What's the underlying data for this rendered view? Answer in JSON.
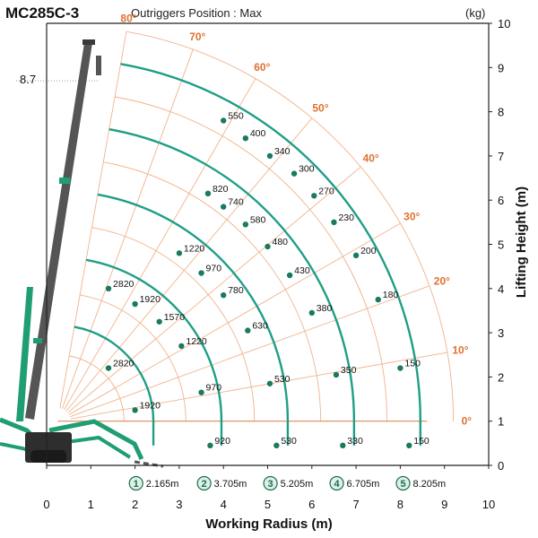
{
  "header": {
    "model": "MC285C-3",
    "subtitle": "Outriggers Position : Max",
    "unit": "(kg)"
  },
  "chart_data": {
    "type": "load-chart",
    "xlabel": "Working Radius (m)",
    "ylabel": "Lifting Height (m)",
    "xlim": [
      0,
      10
    ],
    "ylim": [
      0,
      10
    ],
    "x_ticks": [
      "0",
      "1",
      "2",
      "3",
      "4",
      "5",
      "6",
      "7",
      "8",
      "9",
      "10"
    ],
    "y_ticks": [
      "0",
      "1",
      "2",
      "3",
      "4",
      "5",
      "6",
      "7",
      "8",
      "9",
      "10"
    ],
    "max_height_label": "8.7",
    "max_height_value": 8.7,
    "boom_pivot": [
      0.25,
      1.0
    ],
    "angle_lines": [
      {
        "label": "80°",
        "deg": 80
      },
      {
        "label": "70°",
        "deg": 70
      },
      {
        "label": "60°",
        "deg": 60
      },
      {
        "label": "50°",
        "deg": 50
      },
      {
        "label": "40°",
        "deg": 40
      },
      {
        "label": "30°",
        "deg": 30
      },
      {
        "label": "20°",
        "deg": 20
      },
      {
        "label": "10°",
        "deg": 10
      },
      {
        "label": "0°",
        "deg": 0
      }
    ],
    "boom_sections": [
      {
        "index": "1",
        "length_label": "2.165m",
        "radius": 2.165
      },
      {
        "index": "2",
        "length_label": "3.705m",
        "radius": 3.705
      },
      {
        "index": "3",
        "length_label": "5.205m",
        "radius": 5.205
      },
      {
        "index": "4",
        "length_label": "6.705m",
        "radius": 6.705
      },
      {
        "index": "5",
        "length_label": "8.205m",
        "radius": 8.205
      }
    ],
    "loads": [
      {
        "value": "550",
        "x": 4.0,
        "y": 7.8
      },
      {
        "value": "400",
        "x": 4.5,
        "y": 7.4
      },
      {
        "value": "340",
        "x": 5.05,
        "y": 7.0
      },
      {
        "value": "300",
        "x": 5.6,
        "y": 6.6
      },
      {
        "value": "270",
        "x": 6.05,
        "y": 6.1
      },
      {
        "value": "230",
        "x": 6.5,
        "y": 5.5
      },
      {
        "value": "200",
        "x": 7.0,
        "y": 4.75
      },
      {
        "value": "180",
        "x": 7.5,
        "y": 3.75
      },
      {
        "value": "150",
        "x": 8.0,
        "y": 2.2
      },
      {
        "value": "150",
        "x": 8.2,
        "y": 0.45
      },
      {
        "value": "820",
        "x": 3.65,
        "y": 6.15
      },
      {
        "value": "740",
        "x": 4.0,
        "y": 5.85
      },
      {
        "value": "580",
        "x": 4.5,
        "y": 5.45
      },
      {
        "value": "480",
        "x": 5.0,
        "y": 4.95
      },
      {
        "value": "430",
        "x": 5.5,
        "y": 4.3
      },
      {
        "value": "380",
        "x": 6.0,
        "y": 3.45
      },
      {
        "value": "350",
        "x": 6.55,
        "y": 2.05
      },
      {
        "value": "330",
        "x": 6.7,
        "y": 0.45
      },
      {
        "value": "1220",
        "x": 3.0,
        "y": 4.8
      },
      {
        "value": "970",
        "x": 3.5,
        "y": 4.35
      },
      {
        "value": "780",
        "x": 4.0,
        "y": 3.85
      },
      {
        "value": "630",
        "x": 4.55,
        "y": 3.05
      },
      {
        "value": "530",
        "x": 5.05,
        "y": 1.85
      },
      {
        "value": "530",
        "x": 5.2,
        "y": 0.45
      },
      {
        "value": "2820",
        "x": 1.4,
        "y": 4.0
      },
      {
        "value": "1920",
        "x": 2.0,
        "y": 3.65
      },
      {
        "value": "1570",
        "x": 2.55,
        "y": 3.25
      },
      {
        "value": "1220",
        "x": 3.05,
        "y": 2.7
      },
      {
        "value": "970",
        "x": 3.5,
        "y": 1.65
      },
      {
        "value": "920",
        "x": 3.7,
        "y": 0.45
      },
      {
        "value": "2820",
        "x": 1.4,
        "y": 2.2
      },
      {
        "value": "1920",
        "x": 2.0,
        "y": 1.25
      }
    ]
  }
}
